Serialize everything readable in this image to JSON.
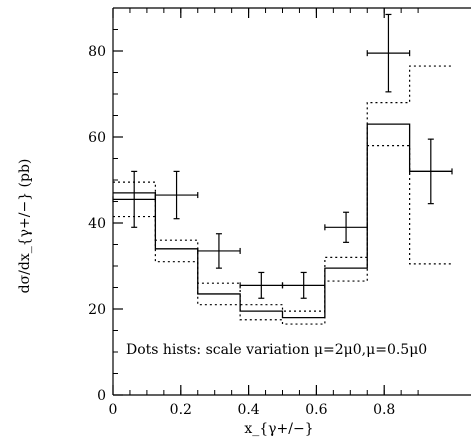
{
  "chart_data": {
    "type": "histogram",
    "xlabel": "x_{γ+/−}",
    "ylabel": "dσ/dx_{γ+/−} (pb)",
    "xlim": [
      0,
      0.9
    ],
    "ylim": [
      0,
      90
    ],
    "x_ticks": [
      "0",
      "0.2",
      "0.4",
      "0.6",
      "0.8"
    ],
    "y_ticks": [
      "0",
      "20",
      "40",
      "60",
      "80"
    ],
    "annotation": "Dots hists: scale variation μ=2μ0,μ=0.5μ0",
    "bin_edges": [
      0,
      0.125,
      0.25,
      0.375,
      0.5,
      0.625,
      0.75,
      0.875,
      1.0
    ],
    "series": [
      {
        "style": "solid",
        "values": [
          47,
          34,
          23.5,
          19.5,
          18,
          29.5,
          63,
          52
        ]
      },
      {
        "style": "dotted",
        "values": [
          49.5,
          36,
          26,
          21,
          19.5,
          32,
          68,
          76.5
        ]
      },
      {
        "style": "dotted",
        "values": [
          41.5,
          31,
          21,
          17.5,
          16.5,
          26.5,
          58,
          30.5
        ]
      },
      {
        "style": "data-points",
        "points": [
          {
            "x": 0.0625,
            "y": 45.5,
            "yerr": 6.5,
            "xerr": 0.0625
          },
          {
            "x": 0.1875,
            "y": 46.5,
            "yerr": 5.5,
            "xerr": 0.0625
          },
          {
            "x": 0.3125,
            "y": 33.5,
            "yerr": 4.0,
            "xerr": 0.0625
          },
          {
            "x": 0.4375,
            "y": 25.5,
            "yerr": 3.0,
            "xerr": 0.0625
          },
          {
            "x": 0.5625,
            "y": 25.5,
            "yerr": 3.0,
            "xerr": 0.0625
          },
          {
            "x": 0.6875,
            "y": 39.0,
            "yerr": 3.5,
            "xerr": 0.0625
          },
          {
            "x": 0.8125,
            "y": 79.5,
            "yerr": 9.0,
            "xerr": 0.0625
          },
          {
            "x": 0.9375,
            "y": 52.0,
            "yerr": 7.5,
            "xerr": 0.0625
          }
        ]
      }
    ]
  }
}
